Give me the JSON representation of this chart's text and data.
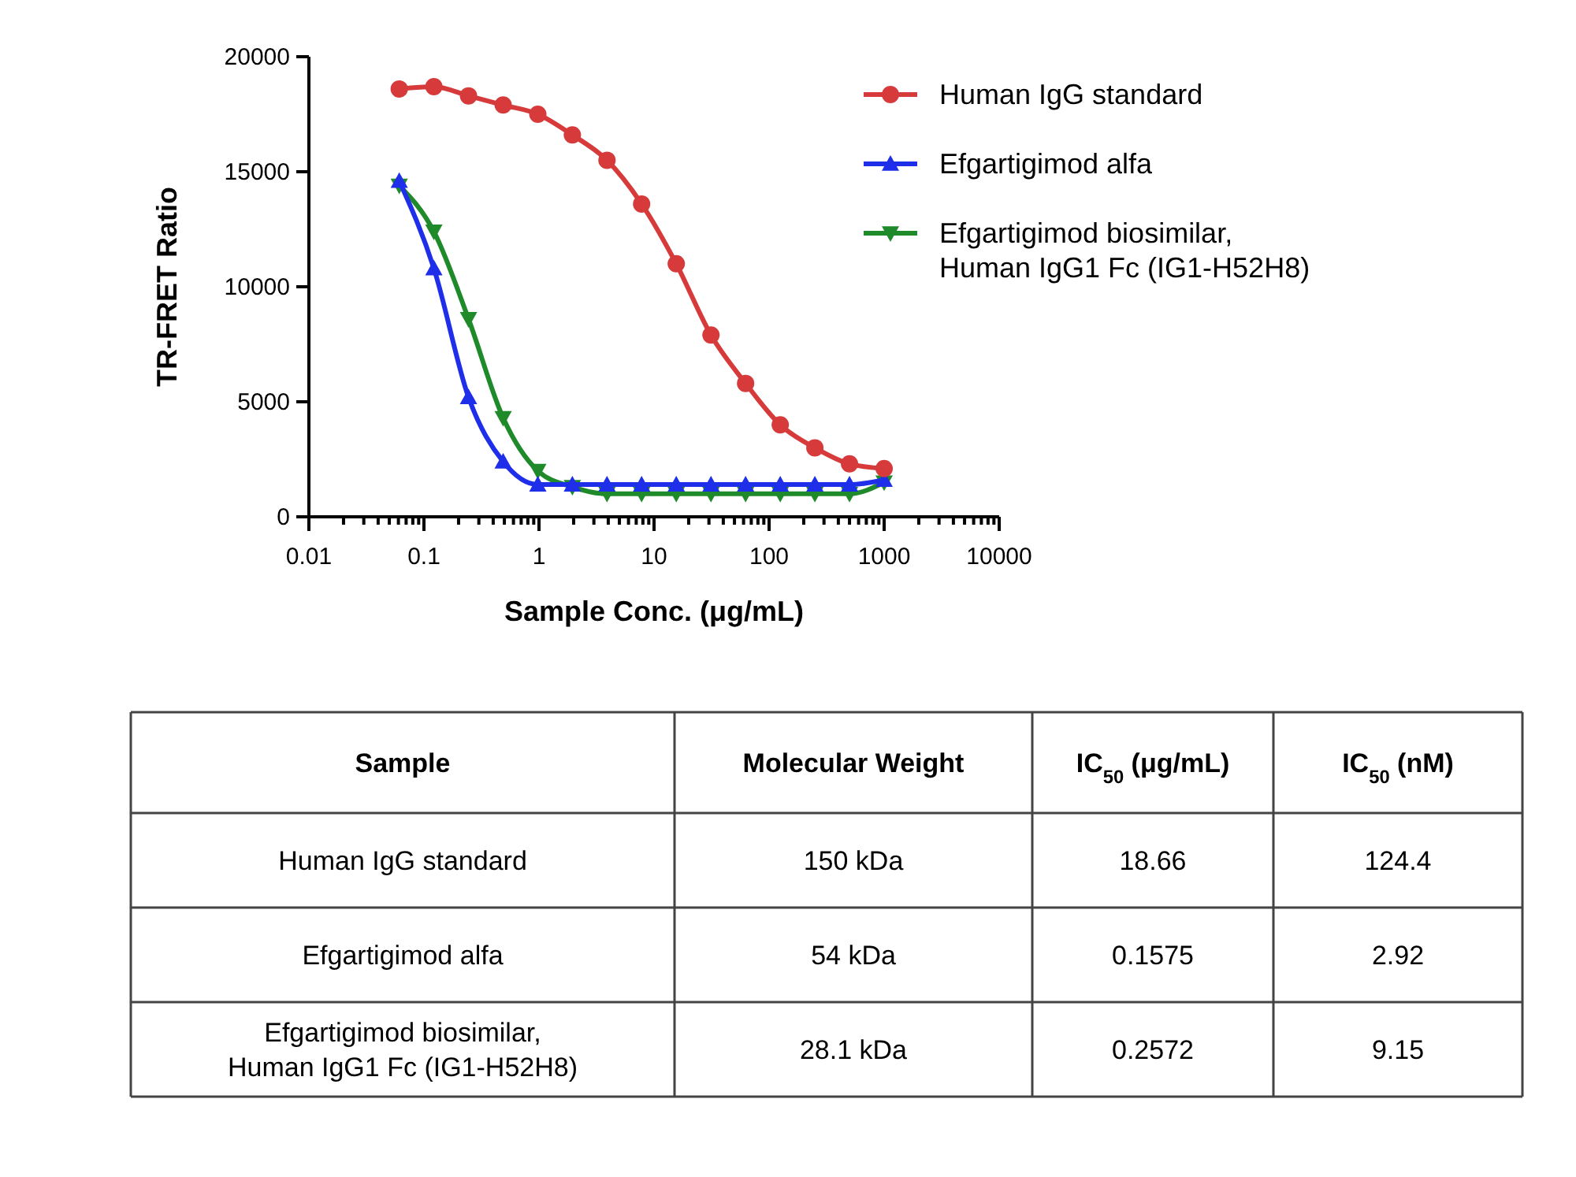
{
  "chart_data": {
    "type": "line",
    "xlabel": "Sample Conc. (μg/mL)",
    "ylabel": "TR-FRET Ratio",
    "log": "x",
    "legend": "top right",
    "grid": false,
    "xlim": [
      0.01,
      10000
    ],
    "xticks": [
      0.01,
      {
        "value": 0.02,
        "label": null
      },
      {
        "value": 0.03,
        "label": null
      },
      {
        "value": 0.04,
        "label": null
      },
      {
        "value": 0.05,
        "label": null
      },
      {
        "value": 0.06,
        "label": null
      },
      {
        "value": 0.07,
        "label": null
      },
      {
        "value": 0.08,
        "label": null
      },
      {
        "value": 0.09,
        "label": null
      },
      0.1,
      {
        "value": 0.2,
        "label": null
      },
      {
        "value": 0.3,
        "label": null
      },
      {
        "value": 0.4,
        "label": null
      },
      {
        "value": 0.5,
        "label": null
      },
      {
        "value": 0.6,
        "label": null
      },
      {
        "value": 0.7,
        "label": null
      },
      {
        "value": 0.8,
        "label": null
      },
      {
        "value": 0.9,
        "label": null
      },
      1,
      {
        "value": 2,
        "label": null
      },
      {
        "value": 3,
        "label": null
      },
      {
        "value": 4,
        "label": null
      },
      {
        "value": 5,
        "label": null
      },
      {
        "value": 6,
        "label": null
      },
      {
        "value": 7,
        "label": null
      },
      {
        "value": 8,
        "label": null
      },
      {
        "value": 9,
        "label": null
      },
      10,
      {
        "value": 20,
        "label": null
      },
      {
        "value": 30,
        "label": null
      },
      {
        "value": 40,
        "label": null
      },
      {
        "value": 50,
        "label": null
      },
      {
        "value": 60,
        "label": null
      },
      {
        "value": 70,
        "label": null
      },
      {
        "value": 80,
        "label": null
      },
      {
        "value": 90,
        "label": null
      },
      100,
      {
        "value": 200,
        "label": null
      },
      {
        "value": 300,
        "label": null
      },
      {
        "value": 400,
        "label": null
      },
      {
        "value": 500,
        "label": null
      },
      {
        "value": 600,
        "label": null
      },
      {
        "value": 700,
        "label": null
      },
      {
        "value": 800,
        "label": null
      },
      {
        "value": 900,
        "label": null
      },
      1000,
      {
        "value": 2000,
        "label": null
      },
      {
        "value": 3000,
        "label": null
      },
      {
        "value": 4000,
        "label": null
      },
      {
        "value": 5000,
        "label": null
      },
      {
        "value": 6000,
        "label": null
      },
      {
        "value": 7000,
        "label": null
      },
      {
        "value": 8000,
        "label": null
      },
      {
        "value": 9000,
        "label": null
      },
      10000
    ],
    "ylim": [
      0,
      20000
    ],
    "yticks": [
      0,
      5000,
      10000,
      15000,
      20000
    ],
    "x": [
      0.061,
      0.122,
      0.244,
      0.488,
      0.977,
      1.95,
      3.9,
      7.8,
      15.6,
      31.25,
      62.5,
      125,
      250,
      500,
      1000
    ],
    "series": [
      {
        "name": "Human IgG standard",
        "color": "#d63a3a",
        "marker": "circle",
        "values": [
          18600,
          18700,
          18300,
          17900,
          17500,
          16600,
          15500,
          13600,
          11000,
          7900,
          5800,
          4000,
          3000,
          2300,
          2100
        ]
      },
      {
        "name": "Efgartigimod alfa",
        "color": "#1f2ee8",
        "marker": "triangle",
        "values": [
          14600,
          10800,
          5200,
          2400,
          1400,
          1400,
          1400,
          1400,
          1400,
          1400,
          1400,
          1400,
          1400,
          1400,
          1600
        ]
      },
      {
        "name": "Efgartigimod biosimilar,\nHuman IgG1 Fc (IG1-H52H8)",
        "color": "#1f8a2a",
        "marker": "triangle-down",
        "values": [
          14400,
          12400,
          8600,
          4300,
          2000,
          1300,
          1000,
          1000,
          1000,
          1000,
          1000,
          1000,
          1000,
          1000,
          1500
        ]
      }
    ],
    "annotations": [
      "Sample",
      "Molecular Weight",
      "IC$_{50}$ (μg/mL)",
      "IC$_{50}$ (nM)",
      "Human IgG standard",
      "150 kDa",
      "18.66",
      "124.4",
      "Efgartigimod alfa",
      "54 kDa",
      "0.1575",
      "2.92",
      "Efgartigimod biosimilar,\nHuman IgG1 Fc (IG1-H52H8)",
      "28.1 kDa",
      "0.2572",
      "9.15"
    ]
  }
}
